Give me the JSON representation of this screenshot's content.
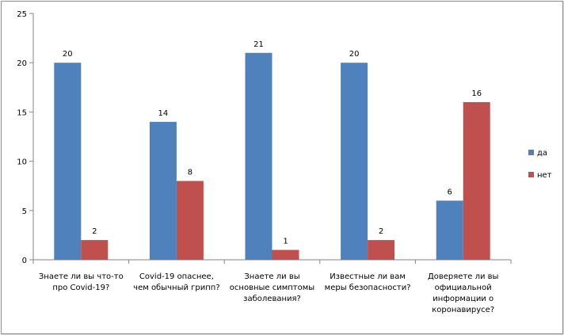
{
  "chart_data": {
    "type": "bar",
    "categories": [
      [
        "Знаете ли вы что-то",
        "про Covid-19?"
      ],
      [
        "Covid-19 опаснее,",
        "чем обычный грипп?"
      ],
      [
        "Знаете ли вы",
        "основные симптомы",
        "заболевания?"
      ],
      [
        "Известные ли вам",
        "меры безопасности?"
      ],
      [
        "Доверяете ли вы",
        "официальной",
        "информации о",
        "коронавирусе?"
      ]
    ],
    "series": [
      {
        "name": "да",
        "color": "#4f81bd",
        "values": [
          20,
          14,
          21,
          20,
          6
        ]
      },
      {
        "name": "нет",
        "color": "#c0504d",
        "values": [
          2,
          8,
          1,
          2,
          16
        ]
      }
    ],
    "yticks": [
      0,
      5,
      10,
      15,
      20,
      25
    ],
    "ylim": [
      0,
      25
    ],
    "grid": false,
    "legend": "right"
  }
}
